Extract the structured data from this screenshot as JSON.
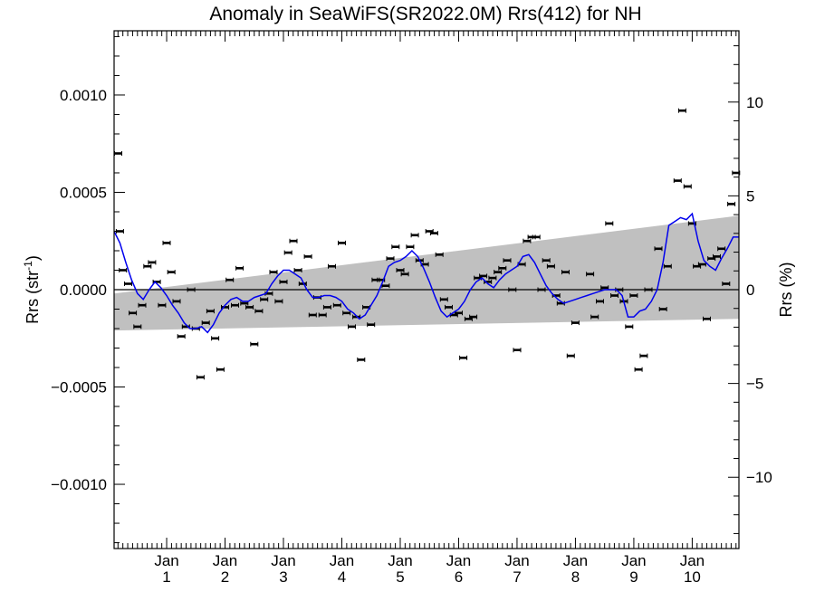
{
  "chart_data": {
    "type": "scatter",
    "title": "Anomaly in SeaWiFS(SR2022.0M) Rrs(412) for NH",
    "ylabel_left": "Rrs (str",
    "ylabel_left_sup": "-1",
    "ylabel_left_end": ")",
    "ylabel_right": "Rrs (%)",
    "xlim": [
      0.1,
      10.8
    ],
    "ylim": [
      -0.00133,
      0.00133
    ],
    "right_ylim": [
      -13.8,
      13.8
    ],
    "y_ticks": [
      {
        "value": 0.001,
        "label": "0.0010"
      },
      {
        "value": 0.0005,
        "label": "0.0005"
      },
      {
        "value": 0.0,
        "label": "0.0000"
      },
      {
        "value": -0.0005,
        "label": "−0.0005"
      },
      {
        "value": -0.001,
        "label": "−0.0010"
      }
    ],
    "right_ticks": [
      {
        "value": 10,
        "label": "10"
      },
      {
        "value": 5,
        "label": "5"
      },
      {
        "value": 0,
        "label": "0"
      },
      {
        "value": -5,
        "label": "−5"
      },
      {
        "value": -10,
        "label": "−10"
      }
    ],
    "x_ticks": [
      {
        "value": 1,
        "label": "Jan",
        "sub": "1"
      },
      {
        "value": 2,
        "label": "Jan",
        "sub": "2"
      },
      {
        "value": 3,
        "label": "Jan",
        "sub": "3"
      },
      {
        "value": 4,
        "label": "Jan",
        "sub": "4"
      },
      {
        "value": 5,
        "label": "Jan",
        "sub": "5"
      },
      {
        "value": 6,
        "label": "Jan",
        "sub": "6"
      },
      {
        "value": 7,
        "label": "Jan",
        "sub": "7"
      },
      {
        "value": 8,
        "label": "Jan",
        "sub": "8"
      },
      {
        "value": 9,
        "label": "Jan",
        "sub": "9"
      },
      {
        "value": 10,
        "label": "Jan",
        "sub": "10"
      }
    ],
    "band": {
      "color": "#c0c0c0",
      "x": [
        0.1,
        10.8
      ],
      "upper": [
        -2e-05,
        0.00038
      ],
      "lower": [
        -0.00021,
        -0.00015
      ]
    },
    "zero_line": 0,
    "points": [
      {
        "x": 0.17,
        "y": 0.0007
      },
      {
        "x": 0.2,
        "y": 0.0003
      },
      {
        "x": 0.25,
        "y": 0.0001
      },
      {
        "x": 0.34,
        "y": 3e-05
      },
      {
        "x": 0.42,
        "y": -0.00012
      },
      {
        "x": 0.5,
        "y": -0.00019
      },
      {
        "x": 0.58,
        "y": -8e-05
      },
      {
        "x": 0.67,
        "y": 0.00012
      },
      {
        "x": 0.75,
        "y": 0.00014
      },
      {
        "x": 0.83,
        "y": 4e-05
      },
      {
        "x": 0.92,
        "y": -8e-05
      },
      {
        "x": 1.0,
        "y": 0.00024
      },
      {
        "x": 1.08,
        "y": 9e-05
      },
      {
        "x": 1.17,
        "y": -6e-05
      },
      {
        "x": 1.25,
        "y": -0.00024
      },
      {
        "x": 1.33,
        "y": -0.00019
      },
      {
        "x": 1.42,
        "y": 0.0
      },
      {
        "x": 1.5,
        "y": -0.0002
      },
      {
        "x": 1.58,
        "y": -0.00045
      },
      {
        "x": 1.67,
        "y": -0.00017
      },
      {
        "x": 1.75,
        "y": -0.00011
      },
      {
        "x": 1.83,
        "y": -0.00025
      },
      {
        "x": 1.92,
        "y": -0.00041
      },
      {
        "x": 2.0,
        "y": -9e-05
      },
      {
        "x": 2.08,
        "y": 5e-05
      },
      {
        "x": 2.17,
        "y": -8e-05
      },
      {
        "x": 2.25,
        "y": 0.00011
      },
      {
        "x": 2.33,
        "y": -7e-05
      },
      {
        "x": 2.42,
        "y": -9e-05
      },
      {
        "x": 2.5,
        "y": -0.00028
      },
      {
        "x": 2.58,
        "y": -0.00011
      },
      {
        "x": 2.67,
        "y": -5e-05
      },
      {
        "x": 2.75,
        "y": -2e-05
      },
      {
        "x": 2.83,
        "y": 9e-05
      },
      {
        "x": 2.92,
        "y": -6e-05
      },
      {
        "x": 3.0,
        "y": 4e-05
      },
      {
        "x": 3.08,
        "y": 0.00019
      },
      {
        "x": 3.17,
        "y": 0.00025
      },
      {
        "x": 3.25,
        "y": 0.0001
      },
      {
        "x": 3.33,
        "y": 3e-05
      },
      {
        "x": 3.42,
        "y": 0.00017
      },
      {
        "x": 3.5,
        "y": -0.00013
      },
      {
        "x": 3.58,
        "y": -4e-05
      },
      {
        "x": 3.67,
        "y": -0.00013
      },
      {
        "x": 3.75,
        "y": -9e-05
      },
      {
        "x": 3.83,
        "y": 0.00012
      },
      {
        "x": 3.92,
        "y": -8e-05
      },
      {
        "x": 4.0,
        "y": 0.00024
      },
      {
        "x": 4.08,
        "y": -0.00012
      },
      {
        "x": 4.17,
        "y": -0.00019
      },
      {
        "x": 4.25,
        "y": -0.00014
      },
      {
        "x": 4.33,
        "y": -0.00036
      },
      {
        "x": 4.42,
        "y": -9e-05
      },
      {
        "x": 4.5,
        "y": -0.00018
      },
      {
        "x": 4.58,
        "y": 5e-05
      },
      {
        "x": 4.67,
        "y": 5e-05
      },
      {
        "x": 4.75,
        "y": 2e-05
      },
      {
        "x": 4.83,
        "y": 0.00016
      },
      {
        "x": 4.92,
        "y": 0.00022
      },
      {
        "x": 5.0,
        "y": 0.0001
      },
      {
        "x": 5.08,
        "y": 8e-05
      },
      {
        "x": 5.17,
        "y": 0.00022
      },
      {
        "x": 5.25,
        "y": 0.00028
      },
      {
        "x": 5.33,
        "y": 0.00015
      },
      {
        "x": 5.42,
        "y": 0.00013
      },
      {
        "x": 5.5,
        "y": 0.0003
      },
      {
        "x": 5.58,
        "y": 0.00029
      },
      {
        "x": 5.67,
        "y": 0.00018
      },
      {
        "x": 5.75,
        "y": -5e-05
      },
      {
        "x": 5.83,
        "y": -9e-05
      },
      {
        "x": 5.92,
        "y": -0.00013
      },
      {
        "x": 6.0,
        "y": -0.00012
      },
      {
        "x": 6.08,
        "y": -0.00035
      },
      {
        "x": 6.17,
        "y": -0.00015
      },
      {
        "x": 6.25,
        "y": -0.00014
      },
      {
        "x": 6.33,
        "y": 6e-05
      },
      {
        "x": 6.42,
        "y": 7e-05
      },
      {
        "x": 6.5,
        "y": 4e-05
      },
      {
        "x": 6.58,
        "y": 6e-05
      },
      {
        "x": 6.67,
        "y": 9e-05
      },
      {
        "x": 6.75,
        "y": 0.00011
      },
      {
        "x": 6.83,
        "y": 0.00015
      },
      {
        "x": 6.92,
        "y": 0.0
      },
      {
        "x": 7.0,
        "y": -0.00031
      },
      {
        "x": 7.08,
        "y": 0.00013
      },
      {
        "x": 7.17,
        "y": 0.00025
      },
      {
        "x": 7.25,
        "y": 0.00027
      },
      {
        "x": 7.33,
        "y": 0.00027
      },
      {
        "x": 7.42,
        "y": 0.0
      },
      {
        "x": 7.5,
        "y": 0.00015
      },
      {
        "x": 7.58,
        "y": 0.00012
      },
      {
        "x": 7.67,
        "y": -3e-05
      },
      {
        "x": 7.75,
        "y": -7e-05
      },
      {
        "x": 7.83,
        "y": 9e-05
      },
      {
        "x": 7.92,
        "y": -0.00034
      },
      {
        "x": 8.0,
        "y": -0.00017
      },
      {
        "x": 8.25,
        "y": 8e-05
      },
      {
        "x": 8.33,
        "y": -0.00014
      },
      {
        "x": 8.42,
        "y": -6e-05
      },
      {
        "x": 8.5,
        "y": 1e-05
      },
      {
        "x": 8.58,
        "y": 0.00034
      },
      {
        "x": 8.67,
        "y": -3e-05
      },
      {
        "x": 8.75,
        "y": 0.0
      },
      {
        "x": 8.83,
        "y": -6e-05
      },
      {
        "x": 8.92,
        "y": -0.00019
      },
      {
        "x": 9.0,
        "y": -3e-05
      },
      {
        "x": 9.08,
        "y": -0.00041
      },
      {
        "x": 9.17,
        "y": -0.00034
      },
      {
        "x": 9.25,
        "y": 0.0
      },
      {
        "x": 9.42,
        "y": 0.00021
      },
      {
        "x": 9.5,
        "y": -0.0001
      },
      {
        "x": 9.58,
        "y": 0.00012
      },
      {
        "x": 9.75,
        "y": 0.00056
      },
      {
        "x": 9.83,
        "y": 0.00092
      },
      {
        "x": 9.92,
        "y": 0.00053
      },
      {
        "x": 10.0,
        "y": 0.00034
      },
      {
        "x": 10.08,
        "y": 0.00012
      },
      {
        "x": 10.17,
        "y": 0.00013
      },
      {
        "x": 10.25,
        "y": -0.00015
      },
      {
        "x": 10.33,
        "y": 0.00016
      },
      {
        "x": 10.42,
        "y": 0.00017
      },
      {
        "x": 10.5,
        "y": 0.00021
      },
      {
        "x": 10.58,
        "y": 3e-05
      },
      {
        "x": 10.67,
        "y": 0.00044
      },
      {
        "x": 10.75,
        "y": 0.0006
      }
    ],
    "smooth_line": {
      "color": "#0000ee",
      "x": [
        0.1,
        0.2,
        0.3,
        0.4,
        0.5,
        0.6,
        0.7,
        0.8,
        0.9,
        1.0,
        1.1,
        1.2,
        1.3,
        1.4,
        1.5,
        1.6,
        1.7,
        1.8,
        1.9,
        2.0,
        2.1,
        2.2,
        2.3,
        2.4,
        2.5,
        2.6,
        2.7,
        2.8,
        2.9,
        3.0,
        3.1,
        3.2,
        3.3,
        3.4,
        3.5,
        3.6,
        3.7,
        3.8,
        3.9,
        4.0,
        4.1,
        4.2,
        4.3,
        4.4,
        4.5,
        4.6,
        4.7,
        4.8,
        4.9,
        5.0,
        5.1,
        5.2,
        5.3,
        5.4,
        5.5,
        5.6,
        5.7,
        5.8,
        5.9,
        6.0,
        6.1,
        6.2,
        6.3,
        6.4,
        6.5,
        6.6,
        6.7,
        6.8,
        6.9,
        7.0,
        7.1,
        7.2,
        7.3,
        7.4,
        7.5,
        7.6,
        7.7,
        7.8,
        7.9,
        8.0,
        8.1,
        8.2,
        8.3,
        8.4,
        8.5,
        8.6,
        8.7,
        8.8,
        8.9,
        9.0,
        9.1,
        9.2,
        9.3,
        9.4,
        9.5,
        9.6,
        9.7,
        9.8,
        9.9,
        10.0,
        10.1,
        10.2,
        10.3,
        10.4,
        10.5,
        10.6,
        10.7,
        10.8
      ],
      "y": [
        0.0003,
        0.00024,
        0.00014,
        5e-05,
        -2e-05,
        -5e-05,
        0.0,
        4e-05,
        1e-05,
        -3e-05,
        -8e-05,
        -0.00012,
        -0.00017,
        -0.0002,
        -0.0002,
        -0.00019,
        -0.00022,
        -0.00018,
        -0.00012,
        -8e-05,
        -5e-05,
        -4e-05,
        -6e-05,
        -6e-05,
        -4e-05,
        -3e-05,
        -2e-05,
        3e-05,
        7e-05,
        0.0001,
        0.0001,
        8e-05,
        6e-05,
        0.0,
        -4e-05,
        -4e-05,
        -3e-05,
        -3e-05,
        -4e-05,
        -6e-05,
        -0.0001,
        -0.00012,
        -0.00015,
        -0.00013,
        -8e-05,
        -3e-05,
        4e-05,
        0.00012,
        0.00014,
        0.00015,
        0.00017,
        0.0002,
        0.00017,
        0.00011,
        4e-05,
        -4e-05,
        -0.00011,
        -0.00014,
        -0.00012,
        -0.0001,
        -6e-05,
        0.0,
        4e-05,
        6e-05,
        3e-05,
        1e-05,
        5e-05,
        8e-05,
        0.0001,
        0.00012,
        0.00017,
        0.00018,
        0.00014,
        8e-05,
        2e-05,
        -2e-05,
        -5e-05,
        -7e-05,
        -6e-05,
        -5e-05,
        -4e-05,
        -3e-05,
        -2e-05,
        -1e-05,
        0.0,
        0.0,
        0.0,
        -3e-05,
        -0.00014,
        -0.00014,
        -0.00011,
        -0.0001,
        -6e-05,
        0.0,
        0.00014,
        0.00033,
        0.00035,
        0.00037,
        0.00036,
        0.00039,
        0.00025,
        0.00015,
        0.00012,
        0.0001,
        0.00016,
        0.00021,
        0.00027,
        0.00027
      ]
    }
  }
}
